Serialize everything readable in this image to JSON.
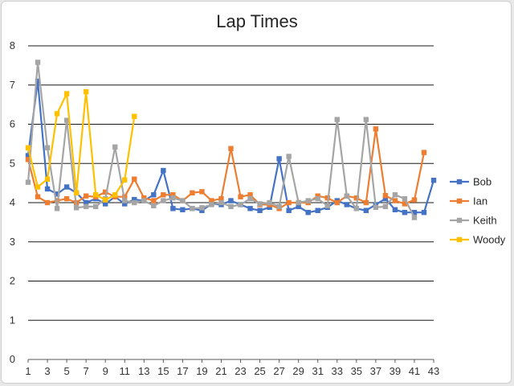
{
  "chart_data": {
    "type": "line",
    "title": "Lap Times",
    "xlabel": "",
    "ylabel": "",
    "ylim": [
      0,
      8
    ],
    "y_ticks": [
      0,
      1,
      2,
      3,
      4,
      5,
      6,
      7,
      8
    ],
    "x_tick_labels": [
      1,
      3,
      5,
      7,
      9,
      11,
      13,
      15,
      17,
      19,
      21,
      23,
      25,
      27,
      29,
      31,
      33,
      35,
      37,
      39,
      41,
      43
    ],
    "grid": "horizontal",
    "legend_position": "right",
    "series": [
      {
        "name": "Bob",
        "color": "#4472c4",
        "values": [
          5.2,
          7.1,
          4.35,
          4.22,
          4.4,
          4.25,
          4.0,
          4.1,
          3.97,
          4.15,
          3.97,
          4.08,
          4.05,
          4.2,
          4.82,
          3.85,
          3.82,
          3.85,
          3.8,
          3.97,
          3.95,
          4.05,
          3.95,
          3.85,
          3.8,
          3.88,
          5.12,
          3.8,
          3.9,
          3.75,
          3.8,
          3.88,
          4.05,
          3.95,
          3.85,
          3.8,
          3.95,
          4.1,
          3.82,
          3.75,
          3.75,
          3.75,
          4.57
        ]
      },
      {
        "name": "Ian",
        "color": "#ed7d31",
        "values": [
          5.1,
          4.15,
          4.0,
          4.05,
          4.1,
          4.0,
          4.17,
          4.15,
          4.27,
          4.15,
          4.15,
          4.6,
          4.12,
          4.05,
          4.2,
          4.2,
          4.05,
          4.25,
          4.28,
          4.05,
          4.1,
          5.38,
          4.15,
          4.2,
          3.95,
          3.95,
          3.85,
          4.0,
          4.0,
          4.0,
          4.17,
          4.12,
          4.0,
          4.17,
          4.12,
          4.0,
          5.88,
          4.18,
          4.05,
          3.97,
          4.07,
          5.28
        ]
      },
      {
        "name": "Keith",
        "color": "#a5a5a5",
        "values": [
          4.52,
          7.58,
          5.4,
          3.85,
          6.1,
          3.87,
          3.9,
          3.9,
          4.1,
          5.42,
          4.05,
          4.0,
          4.05,
          3.92,
          4.05,
          4.12,
          4.05,
          3.85,
          3.87,
          3.95,
          4.0,
          3.9,
          3.95,
          4.1,
          3.97,
          4.0,
          3.9,
          5.18,
          4.0,
          4.05,
          4.1,
          3.92,
          6.12,
          4.17,
          3.85,
          6.12,
          3.88,
          3.9,
          4.2,
          4.1,
          3.62
        ]
      },
      {
        "name": "Woody",
        "color": "#ffc000",
        "values": [
          5.4,
          4.4,
          4.6,
          6.27,
          6.78,
          4.25,
          6.83,
          4.2,
          4.07,
          4.2,
          4.58,
          6.2
        ]
      }
    ]
  }
}
